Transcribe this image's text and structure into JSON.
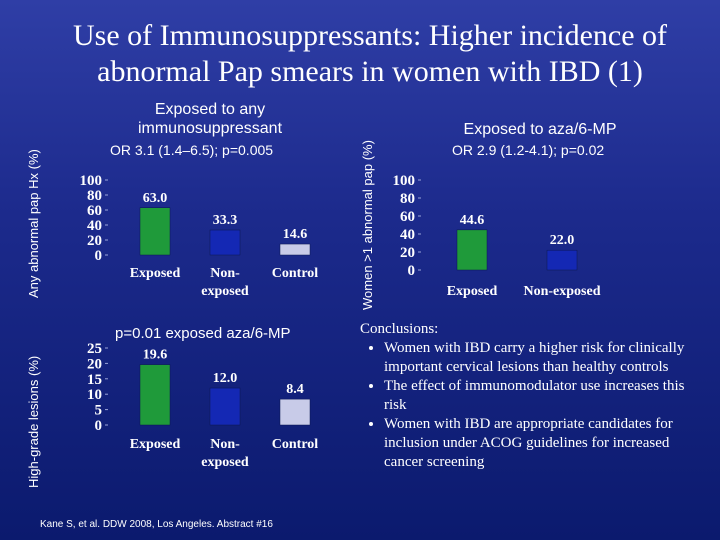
{
  "title": "Use of Immunosuppressants: Higher incidence of abnormal Pap smears in women with IBD (1)",
  "panel_top_left": {
    "heading": "Exposed to any immunosuppressant",
    "stat": "OR 3.1 (1.4–6.5); p=0.005",
    "ylabel": "Any abnormal pap Hx (%)"
  },
  "panel_top_right": {
    "heading": "Exposed to aza/6-MP",
    "stat": "OR 2.9 (1.2-4.1); p=0.02",
    "ylabel": "Women >1 abnormal pap (%)"
  },
  "panel_bottom_left": {
    "heading": "p=0.01 exposed aza/6-MP",
    "ylabel": "High-grade lesions (%)"
  },
  "conclusions": {
    "heading": "Conclusions:",
    "items": [
      "Women with IBD carry a higher risk for clinically important cervical lesions than healthy controls",
      "The effect of immunomodulator use increases this risk",
      "Women with IBD are appropriate candidates for inclusion under ACOG guidelines for increased cancer screening"
    ]
  },
  "citation": "Kane S, et al. DDW 2008, Los Angeles. Abstract #16",
  "colors": {
    "exposed": "#1f9a3a",
    "nonexposed": "#1428b4",
    "control": "#c8cbe8"
  },
  "chart_data": [
    {
      "type": "bar",
      "categories": [
        "Exposed",
        "Non-exposed",
        "Control"
      ],
      "category_lines": [
        [
          "Exposed"
        ],
        [
          "Non-",
          "exposed"
        ],
        [
          "Control"
        ]
      ],
      "values": [
        63.0,
        33.3,
        14.6
      ],
      "value_labels": [
        "63.0",
        "33.3",
        "14.6"
      ],
      "yticks": [
        "100",
        "80",
        "60",
        "40",
        "20",
        "0"
      ],
      "ylim": [
        0,
        100
      ],
      "ylabel": "Any abnormal pap Hx (%)",
      "grid": false
    },
    {
      "type": "bar",
      "categories": [
        "Exposed",
        "Non-exposed"
      ],
      "category_lines": [
        [
          "Exposed"
        ],
        [
          "Non-exposed"
        ]
      ],
      "values": [
        44.6,
        22.0
      ],
      "value_labels": [
        "44.6",
        "22.0"
      ],
      "yticks": [
        "100",
        "80",
        "60",
        "40",
        "20",
        "0"
      ],
      "ylim": [
        0,
        100
      ],
      "ylabel": "Women >1 abnormal pap (%)",
      "grid": false
    },
    {
      "type": "bar",
      "categories": [
        "Exposed",
        "Non-exposed",
        "Control"
      ],
      "category_lines": [
        [
          "Exposed"
        ],
        [
          "Non-",
          "exposed"
        ],
        [
          "Control"
        ]
      ],
      "values": [
        19.6,
        12.0,
        8.4
      ],
      "value_labels": [
        "19.6",
        "12.0",
        "8.4"
      ],
      "yticks": [
        "25",
        "20",
        "15",
        "10",
        "5",
        "0"
      ],
      "ylim": [
        0,
        25
      ],
      "ylabel": "High-grade lesions (%)",
      "grid": false
    }
  ]
}
